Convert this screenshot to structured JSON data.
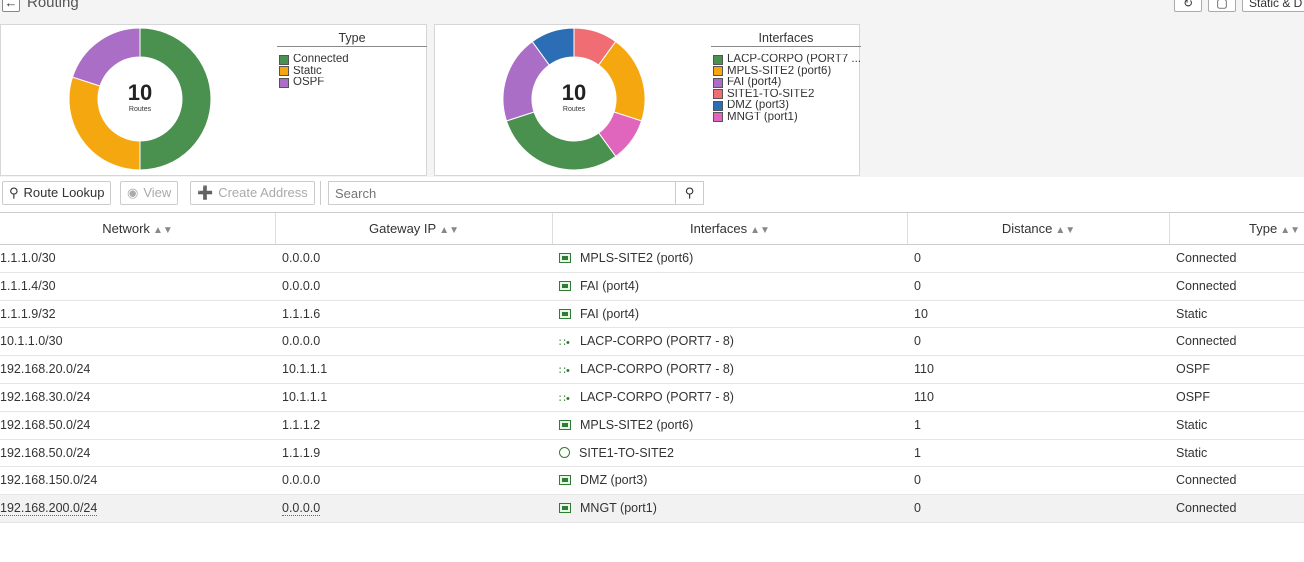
{
  "header": {
    "title": "Routing",
    "view_selector": "Static & D"
  },
  "charts": [
    {
      "legend_title": "Type",
      "center_value": "10",
      "center_label": "Routes",
      "chart_data": {
        "type": "pie",
        "categories": [
          "Connected",
          "Static",
          "OSPF"
        ],
        "values": [
          5,
          3,
          2
        ],
        "colors": [
          "#4a9150",
          "#f5a70f",
          "#ab6ec7"
        ]
      }
    },
    {
      "legend_title": "Interfaces",
      "center_value": "10",
      "center_label": "Routes",
      "chart_data": {
        "type": "pie",
        "categories": [
          "LACP-CORPO (PORT7 ...",
          "MPLS-SITE2 (port6)",
          "FAI (port4)",
          "SITE1-TO-SITE2",
          "DMZ (port3)",
          "MNGT (port1)"
        ],
        "values": [
          3,
          2,
          2,
          1,
          1,
          1
        ],
        "colors": [
          "#4a9150",
          "#f5a70f",
          "#ab6ec7",
          "#f06e73",
          "#2b6eb5",
          "#e065bd"
        ],
        "draw_order": [
          3,
          1,
          5,
          0,
          2,
          4
        ]
      }
    }
  ],
  "toolbar": {
    "route_lookup": "Route Lookup",
    "view": "View",
    "create_address": "Create Address",
    "search_placeholder": "Search"
  },
  "table": {
    "columns": [
      "Network",
      "Gateway IP",
      "Interfaces",
      "Distance",
      "Type"
    ],
    "rows": [
      {
        "network": "1.1.1.0/30",
        "gateway": "0.0.0.0",
        "iface": "MPLS-SITE2 (port6)",
        "icon": "port",
        "distance": "0",
        "type": "Connected"
      },
      {
        "network": "1.1.1.4/30",
        "gateway": "0.0.0.0",
        "iface": "FAI (port4)",
        "icon": "port",
        "distance": "0",
        "type": "Connected"
      },
      {
        "network": "1.1.1.9/32",
        "gateway": "1.1.1.6",
        "iface": "FAI (port4)",
        "icon": "port",
        "distance": "10",
        "type": "Static"
      },
      {
        "network": "10.1.1.0/30",
        "gateway": "0.0.0.0",
        "iface": "LACP-CORPO (PORT7 - 8)",
        "icon": "agg",
        "distance": "0",
        "type": "Connected"
      },
      {
        "network": "192.168.20.0/24",
        "gateway": "10.1.1.1",
        "iface": "LACP-CORPO (PORT7 - 8)",
        "icon": "agg",
        "distance": "110",
        "type": "OSPF"
      },
      {
        "network": "192.168.30.0/24",
        "gateway": "10.1.1.1",
        "iface": "LACP-CORPO (PORT7 - 8)",
        "icon": "agg",
        "distance": "110",
        "type": "OSPF"
      },
      {
        "network": "192.168.50.0/24",
        "gateway": "1.1.1.2",
        "iface": "MPLS-SITE2 (port6)",
        "icon": "port",
        "distance": "1",
        "type": "Static"
      },
      {
        "network": "192.168.50.0/24",
        "gateway": "1.1.1.9",
        "iface": "SITE1-TO-SITE2",
        "icon": "vpn",
        "distance": "1",
        "type": "Static"
      },
      {
        "network": "192.168.150.0/24",
        "gateway": "0.0.0.0",
        "iface": "DMZ (port3)",
        "icon": "port",
        "distance": "0",
        "type": "Connected"
      },
      {
        "network": "192.168.200.0/24",
        "gateway": "0.0.0.0",
        "iface": "MNGT (port1)",
        "icon": "port",
        "distance": "0",
        "type": "Connected",
        "selected": true
      }
    ]
  }
}
